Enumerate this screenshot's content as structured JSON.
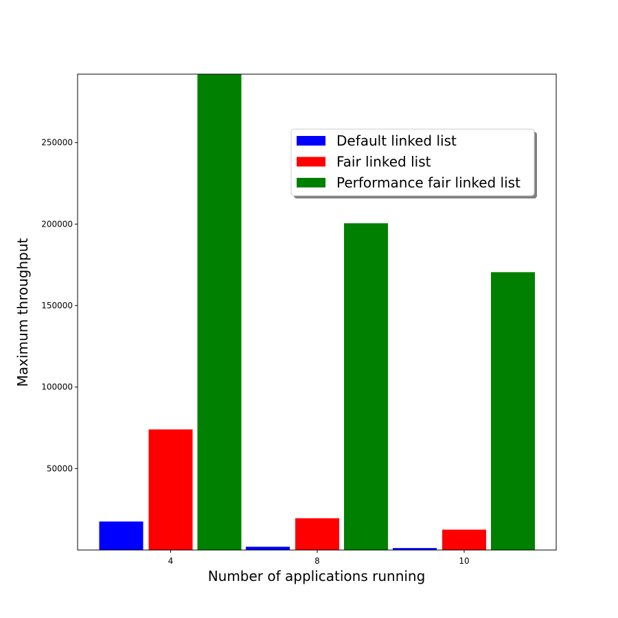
{
  "chart_data": {
    "type": "bar",
    "categories": [
      "4",
      "8",
      "10"
    ],
    "series": [
      {
        "name": "Default linked list",
        "color": "#0000ff",
        "values": [
          17500,
          2000,
          1200
        ]
      },
      {
        "name": "Fair linked list",
        "color": "#ff0000",
        "values": [
          74000,
          19500,
          12500
        ]
      },
      {
        "name": "Performance fair linked list",
        "color": "#008000",
        "values": [
          292000,
          200500,
          170500
        ]
      }
    ],
    "xlabel": "Number of applications running",
    "ylabel": "Maximum throughput",
    "ylim": [
      0,
      292000
    ],
    "yticks": [
      50000,
      100000,
      150000,
      200000,
      250000
    ],
    "legend_position": "upper right",
    "grid": false
  }
}
